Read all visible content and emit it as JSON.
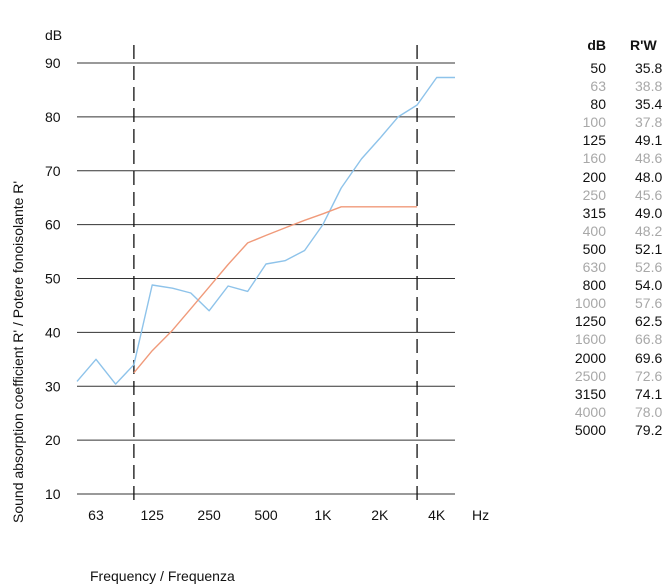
{
  "chart_data": {
    "type": "line",
    "y_unit": "dB",
    "x_unit": "Hz",
    "ylabel": "Sound absorption coefficient R' / Potere fonoisolante R'",
    "xlabel": "Frequency / Frequenza",
    "ylim": [
      10,
      90
    ],
    "y_ticks": [
      10,
      20,
      30,
      40,
      50,
      60,
      70,
      80,
      90
    ],
    "x_ticks": [
      {
        "label": "63",
        "hz": 63
      },
      {
        "label": "125",
        "hz": 125
      },
      {
        "label": "250",
        "hz": 250
      },
      {
        "label": "500",
        "hz": 500
      },
      {
        "label": "1K",
        "hz": 1000
      },
      {
        "label": "2K",
        "hz": 2000
      },
      {
        "label": "4K",
        "hz": 4000
      }
    ],
    "x_scale": "log",
    "x_range_hz": [
      50,
      5000
    ],
    "vertical_markers_hz": [
      100,
      3150
    ],
    "grid": "horizontal",
    "series": [
      {
        "color": "#8ec3ea",
        "x": [
          50,
          63,
          80,
          100,
          125,
          160,
          200,
          250,
          315,
          400,
          500,
          630,
          800,
          1000,
          1250,
          1600,
          2000,
          2500,
          3150,
          4000,
          5000
        ],
        "y": [
          30.9,
          35.0,
          30.4,
          34.0,
          48.8,
          48.2,
          47.3,
          44.0,
          48.6,
          47.6,
          52.7,
          53.3,
          55.2,
          60.0,
          66.8,
          72.2,
          76.0,
          80.0,
          82.2,
          87.3,
          87.3
        ]
      },
      {
        "color": "#f09a7a",
        "x": [
          100,
          125,
          160,
          200,
          250,
          315,
          400,
          500,
          630,
          800,
          1000,
          1250,
          1600,
          2000,
          2500,
          3150
        ],
        "y": [
          32.5,
          36.6,
          40.4,
          44.4,
          48.4,
          52.6,
          56.6,
          58.0,
          59.4,
          60.8,
          62.0,
          63.3,
          63.3,
          63.3,
          63.3,
          63.3
        ]
      }
    ]
  },
  "table": {
    "header_freq": "dB",
    "header_rw": "R'W",
    "rows": [
      {
        "f": "50",
        "rw": "35.8"
      },
      {
        "f": "63",
        "rw": "38.8"
      },
      {
        "f": "80",
        "rw": "35.4"
      },
      {
        "f": "100",
        "rw": "37.8"
      },
      {
        "f": "125",
        "rw": "49.1"
      },
      {
        "f": "160",
        "rw": "48.6"
      },
      {
        "f": "200",
        "rw": "48.0"
      },
      {
        "f": "250",
        "rw": "45.6"
      },
      {
        "f": "315",
        "rw": "49.0"
      },
      {
        "f": "400",
        "rw": "48.2"
      },
      {
        "f": "500",
        "rw": "52.1"
      },
      {
        "f": "630",
        "rw": "52.6"
      },
      {
        "f": "800",
        "rw": "54.0"
      },
      {
        "f": "1000",
        "rw": "57.6"
      },
      {
        "f": "1250",
        "rw": "62.5"
      },
      {
        "f": "1600",
        "rw": "66.8"
      },
      {
        "f": "2000",
        "rw": "69.6"
      },
      {
        "f": "2500",
        "rw": "72.6"
      },
      {
        "f": "3150",
        "rw": "74.1"
      },
      {
        "f": "4000",
        "rw": "78.0"
      },
      {
        "f": "5000",
        "rw": "79.2"
      }
    ]
  }
}
